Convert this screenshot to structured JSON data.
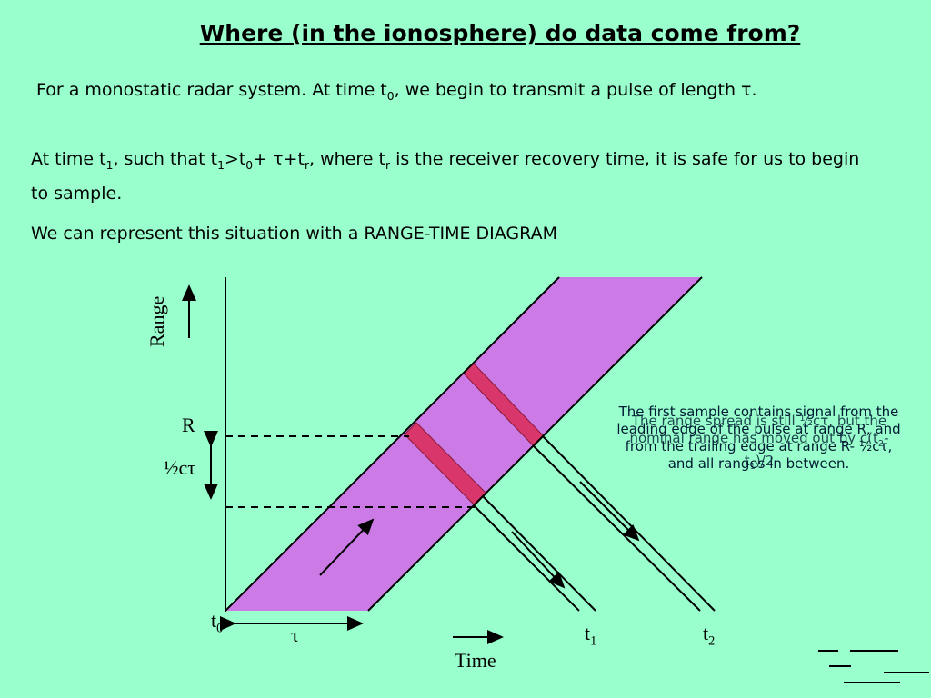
{
  "title": "Where (in the ionosphere) do data come from?",
  "paragraphs": [
    [
      "For a monostatic radar system. At time t",
      "0",
      ", we begin to transmit a pulse of length τ."
    ],
    [
      "At time t",
      "1",
      ", such that t",
      "1",
      ">t",
      "0",
      "+ τ+t",
      "r",
      ", where t",
      "r",
      " is the receiver recovery time, it is safe for us to begin to sample."
    ],
    [
      "We can represent this situation with a RANGE-TIME DIAGRAM"
    ]
  ],
  "diagram": {
    "y_axis_label": "Range",
    "x_axis_label": "Time",
    "range_label": "R",
    "spread_label": "½cτ",
    "t0": [
      "t",
      "0"
    ],
    "tau": "τ",
    "t1": [
      "t",
      "1"
    ],
    "t2": [
      "t",
      "2"
    ],
    "annotation_first": "The first sample contains signal from the leading edge of the pulse at range R, and from the trailing edge at range R- ½cτ, and all ranges in between.",
    "annotation_second": [
      "The range spread is still ½cτ, but the nominal range has moved out by c(t",
      "2",
      "-t",
      "1",
      ")/2"
    ]
  }
}
